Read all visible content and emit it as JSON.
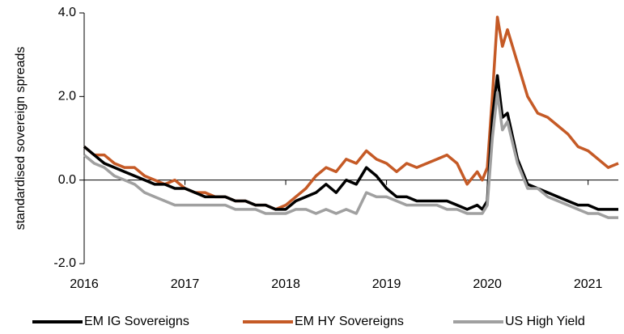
{
  "chart_data": {
    "type": "line",
    "y_label": "standardised sovereign spreads",
    "x": [
      2016.0,
      2016.1,
      2016.2,
      2016.3,
      2016.4,
      2016.5,
      2016.6,
      2016.7,
      2016.8,
      2016.9,
      2017.0,
      2017.1,
      2017.2,
      2017.3,
      2017.4,
      2017.5,
      2017.6,
      2017.7,
      2017.8,
      2017.9,
      2018.0,
      2018.1,
      2018.2,
      2018.3,
      2018.4,
      2018.5,
      2018.6,
      2018.7,
      2018.8,
      2018.9,
      2019.0,
      2019.1,
      2019.2,
      2019.3,
      2019.4,
      2019.5,
      2019.6,
      2019.7,
      2019.8,
      2019.9,
      2019.95,
      2020.0,
      2020.05,
      2020.1,
      2020.15,
      2020.2,
      2020.3,
      2020.4,
      2020.5,
      2020.6,
      2020.7,
      2020.8,
      2020.9,
      2021.0,
      2021.1,
      2021.2,
      2021.3
    ],
    "series": [
      {
        "name": "EM IG Sovereigns",
        "color": "#000000",
        "values": [
          0.8,
          0.6,
          0.4,
          0.3,
          0.2,
          0.1,
          0.0,
          -0.1,
          -0.1,
          -0.2,
          -0.2,
          -0.3,
          -0.4,
          -0.4,
          -0.4,
          -0.5,
          -0.5,
          -0.6,
          -0.6,
          -0.7,
          -0.7,
          -0.5,
          -0.4,
          -0.3,
          -0.1,
          -0.3,
          0.0,
          -0.1,
          0.3,
          0.1,
          -0.2,
          -0.4,
          -0.4,
          -0.5,
          -0.5,
          -0.5,
          -0.5,
          -0.6,
          -0.7,
          -0.6,
          -0.7,
          -0.5,
          1.5,
          2.5,
          1.5,
          1.6,
          0.5,
          -0.1,
          -0.2,
          -0.3,
          -0.4,
          -0.5,
          -0.6,
          -0.6,
          -0.7,
          -0.7,
          -0.7
        ]
      },
      {
        "name": "EM HY Sovereigns",
        "color": "#c55a26",
        "values": [
          0.8,
          0.6,
          0.6,
          0.4,
          0.3,
          0.3,
          0.1,
          0.0,
          -0.1,
          0.0,
          -0.2,
          -0.3,
          -0.3,
          -0.4,
          -0.4,
          -0.5,
          -0.5,
          -0.6,
          -0.6,
          -0.7,
          -0.6,
          -0.4,
          -0.2,
          0.1,
          0.3,
          0.2,
          0.5,
          0.4,
          0.7,
          0.5,
          0.4,
          0.2,
          0.4,
          0.3,
          0.4,
          0.5,
          0.6,
          0.4,
          -0.1,
          0.2,
          0.0,
          0.3,
          2.0,
          3.9,
          3.2,
          3.6,
          2.8,
          2.0,
          1.6,
          1.5,
          1.3,
          1.1,
          0.8,
          0.7,
          0.5,
          0.3,
          0.4
        ]
      },
      {
        "name": "US High Yield",
        "color": "#a0a0a0",
        "values": [
          0.6,
          0.4,
          0.3,
          0.1,
          0.0,
          -0.1,
          -0.3,
          -0.4,
          -0.5,
          -0.6,
          -0.6,
          -0.6,
          -0.6,
          -0.6,
          -0.6,
          -0.7,
          -0.7,
          -0.7,
          -0.8,
          -0.8,
          -0.8,
          -0.7,
          -0.7,
          -0.8,
          -0.7,
          -0.8,
          -0.7,
          -0.8,
          -0.3,
          -0.4,
          -0.4,
          -0.5,
          -0.6,
          -0.6,
          -0.6,
          -0.6,
          -0.7,
          -0.7,
          -0.8,
          -0.8,
          -0.8,
          -0.6,
          1.0,
          2.1,
          1.2,
          1.4,
          0.4,
          -0.2,
          -0.2,
          -0.4,
          -0.5,
          -0.6,
          -0.7,
          -0.8,
          -0.8,
          -0.9,
          -0.9
        ]
      }
    ],
    "xlim": [
      2016,
      2021.3
    ],
    "xticks": [
      2016,
      2017,
      2018,
      2019,
      2020,
      2021
    ],
    "ylim": [
      -2,
      4
    ],
    "yticks": [
      {
        "value": 4,
        "label": "4.0"
      },
      {
        "value": 2,
        "label": "2.0"
      },
      {
        "value": 0,
        "label": "0.0"
      },
      {
        "value": -2,
        "label": "-2.0"
      }
    ],
    "legend": "bottom"
  }
}
